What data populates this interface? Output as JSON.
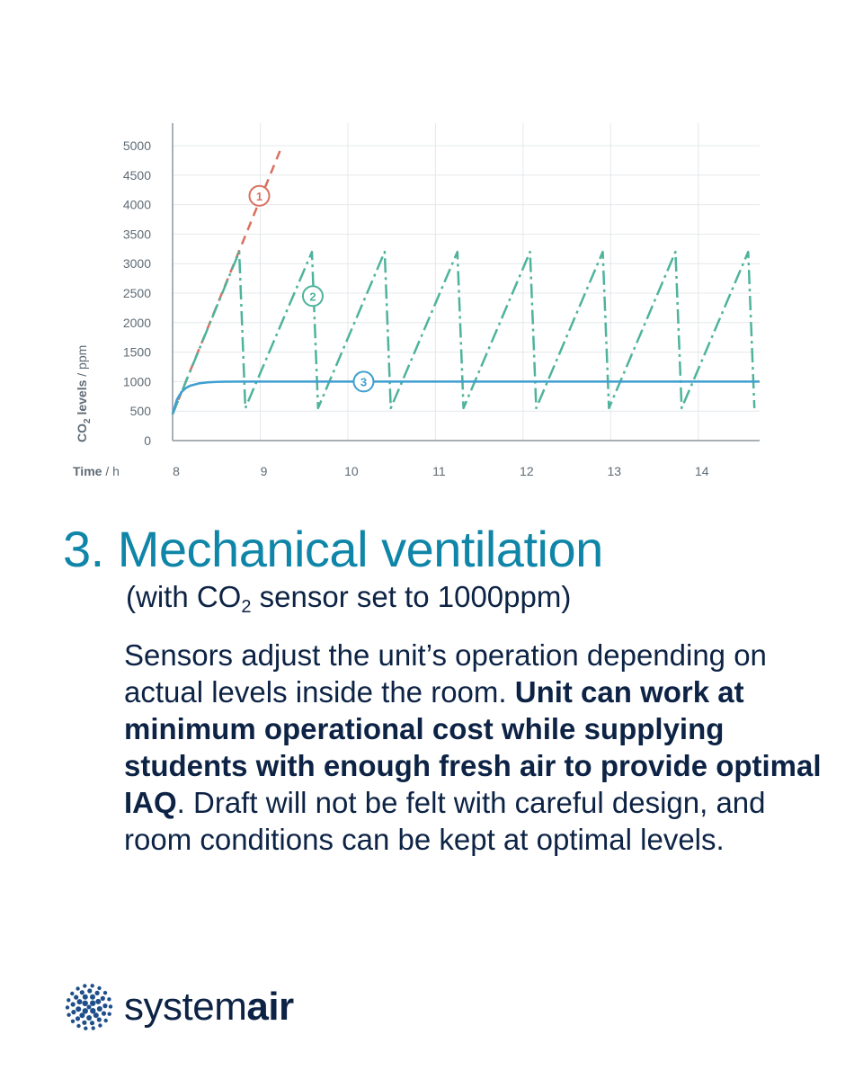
{
  "chart_data": {
    "type": "line",
    "xlabel": "Time",
    "xunit": "h",
    "ylabel_prefix": "CO",
    "ylabel_sub": "2",
    "ylabel_rest": " levels",
    "yunit": "ppm",
    "xlim": [
      8,
      14.7
    ],
    "ylim": [
      0,
      5000
    ],
    "xticks": [
      "8",
      "9",
      "10",
      "11",
      "12",
      "13",
      "14"
    ],
    "yticks": [
      "0",
      "500",
      "1000",
      "1500",
      "2000",
      "2500",
      "3000",
      "3500",
      "4000",
      "4500",
      "5000"
    ],
    "grid": true,
    "series": [
      {
        "marker": "1",
        "color": "#d9705f",
        "style": "dashed",
        "x": [
          8.0,
          9.25
        ],
        "y": [
          450,
          5000
        ]
      },
      {
        "marker": "2",
        "color": "#4fb39c",
        "style": "dash-dot",
        "x": [
          8.0,
          8.76,
          8.83,
          9.59,
          9.66,
          10.42,
          10.49,
          11.25,
          11.32,
          12.08,
          12.15,
          12.91,
          12.98,
          13.74,
          13.81,
          14.57,
          14.64
        ],
        "y": [
          450,
          3200,
          550,
          3200,
          550,
          3200,
          550,
          3200,
          550,
          3200,
          550,
          3200,
          550,
          3200,
          550,
          3200,
          550
        ]
      },
      {
        "marker": "3",
        "color": "#3e9fd1",
        "style": "solid",
        "x": [
          8.0,
          8.05,
          8.1,
          8.15,
          8.2,
          8.3,
          8.4,
          8.5,
          8.6,
          8.8,
          9.0,
          14.7
        ],
        "y": [
          450,
          700,
          820,
          890,
          930,
          970,
          988,
          995,
          998,
          1000,
          1000,
          1000
        ]
      }
    ],
    "annotations": [
      {
        "label": "1",
        "x": 8.99,
        "y": 4150
      },
      {
        "label": "2",
        "x": 9.6,
        "y": 2450
      },
      {
        "label": "3",
        "x": 10.18,
        "y": 1000
      }
    ]
  },
  "content": {
    "heading": "3. Mechanical ventilation",
    "sub_open": "(with CO",
    "sub_sub": "2",
    "sub_close": " sensor set to 1000ppm)",
    "body_1": "Sensors adjust the unit’s operation depending on actual levels inside the room. ",
    "body_bold": "Unit can work at minimum operational cost while supplying students with enough fresh air to provide optimal IAQ",
    "body_2": ". Draft will not be felt with careful design, and  room conditions can be kept at optimal levels."
  },
  "brand": {
    "name_light": "system",
    "name_bold": "air",
    "logo_color": "#1f4f8a"
  }
}
